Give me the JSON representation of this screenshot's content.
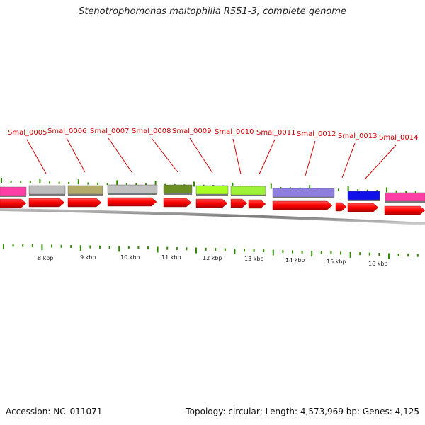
{
  "title": "Stenotrophomonas maltophilia R551-3, complete genome",
  "footer": {
    "accession": "Accession: NC_011071",
    "summary": "Topology: circular; Length: 4,573,969 bp; Genes: 4,125"
  },
  "genes": [
    {
      "label": "Smal_0005",
      "color": "#ff3fa6"
    },
    {
      "label": "Smal_0006",
      "color": "#bdbdbd"
    },
    {
      "label": "Smal_0007",
      "color": "#b3ab6a"
    },
    {
      "label": "Smal_0008",
      "color": "#c0c0c0"
    },
    {
      "label": "Smal_0009",
      "color": "#6b8e23"
    },
    {
      "label": "Smal_0010",
      "color": "#aaff22"
    },
    {
      "label": "Smal_0011",
      "color": "#9ef23a"
    },
    {
      "label": "Smal_0012",
      "color": "#8e7ee0"
    },
    {
      "label": "Smal_0013",
      "color": "#1010e8"
    },
    {
      "label": "Smal_0014",
      "color": "#ff3fa6"
    }
  ],
  "scale_labels": [
    "8 kbp",
    "9 kbp",
    "10 kbp",
    "11 kbp",
    "12 kbp",
    "13 kbp",
    "14 kbp",
    "15 kbp",
    "16 kbp"
  ],
  "colors": {
    "label_red": "#cc0000",
    "arrow_red": "#ff0000",
    "tick_green": "#2e8b00",
    "backbone_gray": "#888888"
  }
}
